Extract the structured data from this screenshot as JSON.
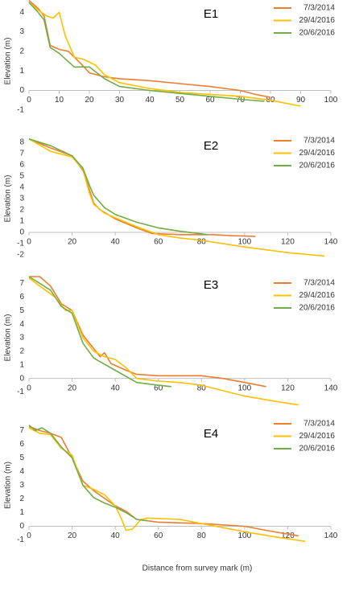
{
  "chart_data": [
    {
      "type": "line",
      "title": "E1",
      "ylabel": "Elevation (m)",
      "xlim": [
        0,
        100
      ],
      "xticks": [
        0,
        10,
        20,
        30,
        40,
        50,
        60,
        70,
        80,
        90,
        100
      ],
      "ylim": [
        -1.5,
        4.5
      ],
      "yticks": [
        -1,
        0,
        1,
        2,
        3,
        4
      ],
      "grid": false,
      "legend": "top-right",
      "series": [
        {
          "name": "7/3/2014",
          "color": "#ed7d31",
          "x": [
            0,
            3,
            5,
            7,
            10,
            13,
            17,
            20,
            25,
            30,
            40,
            50,
            60,
            70,
            75,
            80
          ],
          "values": [
            4.6,
            4.2,
            3.8,
            2.3,
            2.1,
            2.0,
            1.4,
            0.9,
            0.7,
            0.6,
            0.5,
            0.35,
            0.2,
            0,
            -0.2,
            -0.35
          ]
        },
        {
          "name": "29/4/2016",
          "color": "#ffc000",
          "x": [
            0,
            4,
            6,
            8,
            10,
            12,
            15,
            18,
            22,
            25,
            30,
            40,
            50,
            60,
            70,
            80,
            90
          ],
          "values": [
            4.5,
            4.0,
            3.8,
            3.7,
            4.0,
            2.8,
            1.7,
            1.6,
            1.3,
            0.8,
            0.4,
            0.1,
            -0.1,
            -0.2,
            -0.3,
            -0.5,
            -0.8
          ]
        },
        {
          "name": "20/6/2016",
          "color": "#70ad47",
          "x": [
            0,
            3,
            5,
            7,
            10,
            15,
            20,
            25,
            30,
            40,
            50,
            60,
            70,
            78
          ],
          "values": [
            4.5,
            4.0,
            3.6,
            2.2,
            1.9,
            1.2,
            1.2,
            0.6,
            0.2,
            0,
            -0.15,
            -0.3,
            -0.45,
            -0.55
          ]
        }
      ]
    },
    {
      "type": "line",
      "title": "E2",
      "ylabel": "Elevation (m)",
      "xlim": [
        0,
        140
      ],
      "xticks": [
        0,
        20,
        40,
        60,
        80,
        100,
        120,
        140
      ],
      "ylim": [
        -2.5,
        8.5
      ],
      "yticks": [
        -2,
        -1,
        0,
        1,
        2,
        3,
        4,
        5,
        6,
        7,
        8
      ],
      "grid": false,
      "legend": "top-right",
      "series": [
        {
          "name": "7/3/2014",
          "color": "#ed7d31",
          "x": [
            0,
            10,
            20,
            25,
            28,
            30,
            33,
            40,
            50,
            57,
            70,
            85,
            95,
            105
          ],
          "values": [
            8.3,
            7.5,
            6.8,
            5.5,
            3.8,
            2.6,
            2.0,
            1.2,
            0.4,
            -0.1,
            -0.2,
            -0.2,
            -0.3,
            -0.35
          ]
        },
        {
          "name": "29/4/2016",
          "color": "#ffc000",
          "x": [
            0,
            10,
            20,
            25,
            28,
            30,
            35,
            40,
            50,
            60,
            70,
            80,
            100,
            120,
            137
          ],
          "values": [
            8.3,
            7.2,
            6.7,
            5.6,
            3.5,
            2.5,
            1.7,
            1.3,
            0.5,
            -0.2,
            -0.5,
            -0.7,
            -1.3,
            -1.8,
            -2.1
          ]
        },
        {
          "name": "20/6/2016",
          "color": "#70ad47",
          "x": [
            0,
            10,
            20,
            25,
            28,
            30,
            35,
            40,
            50,
            60,
            70,
            83
          ],
          "values": [
            8.3,
            7.7,
            6.8,
            5.7,
            4.2,
            3.3,
            2.2,
            1.6,
            0.9,
            0.4,
            0.1,
            -0.2
          ]
        }
      ]
    },
    {
      "type": "line",
      "title": "E3",
      "ylabel": "Elevation (m)",
      "xlim": [
        0,
        140
      ],
      "xticks": [
        0,
        20,
        40,
        60,
        80,
        100,
        120,
        140
      ],
      "ylim": [
        -1.5,
        7.5
      ],
      "yticks": [
        -1,
        0,
        1,
        2,
        3,
        4,
        5,
        6,
        7
      ],
      "grid": false,
      "legend": "top-right",
      "series": [
        {
          "name": "7/3/2014",
          "color": "#ed7d31",
          "x": [
            0,
            5,
            10,
            15,
            20,
            25,
            30,
            33,
            35,
            38,
            45,
            50,
            60,
            80,
            90,
            100,
            110
          ],
          "values": [
            7.5,
            7.5,
            6.8,
            5.5,
            5.0,
            3.2,
            2.2,
            1.6,
            1.9,
            1.1,
            0.6,
            0.3,
            0.2,
            0.2,
            0,
            -0.3,
            -0.6
          ]
        },
        {
          "name": "29/4/2016",
          "color": "#ffc000",
          "x": [
            0,
            5,
            12,
            17,
            20,
            25,
            30,
            35,
            40,
            45,
            50,
            60,
            70,
            80,
            100,
            115,
            125
          ],
          "values": [
            7.4,
            6.8,
            6.0,
            5.0,
            5.0,
            3.0,
            2.0,
            1.6,
            1.4,
            0.8,
            0,
            -0.2,
            -0.3,
            -0.5,
            -1.3,
            -1.7,
            -1.95
          ]
        },
        {
          "name": "20/6/2016",
          "color": "#70ad47",
          "x": [
            0,
            5,
            10,
            15,
            20,
            25,
            30,
            40,
            50,
            60,
            66
          ],
          "values": [
            7.5,
            7.0,
            6.5,
            5.3,
            4.8,
            2.6,
            1.5,
            0.6,
            -0.3,
            -0.5,
            -0.6
          ]
        }
      ]
    },
    {
      "type": "line",
      "title": "E4",
      "ylabel": "Elevation (m)",
      "xlabel": "Distance from survey mark (m)",
      "xlim": [
        0,
        140
      ],
      "xticks": [
        0,
        20,
        40,
        60,
        80,
        100,
        120,
        140
      ],
      "ylim": [
        -1.5,
        7.5
      ],
      "yticks": [
        -1,
        0,
        1,
        2,
        3,
        4,
        5,
        6,
        7
      ],
      "grid": false,
      "legend": "top-right",
      "series": [
        {
          "name": "7/3/2014",
          "color": "#ed7d31",
          "x": [
            0,
            5,
            10,
            15,
            20,
            25,
            30,
            40,
            45,
            50,
            60,
            80,
            100,
            110,
            125
          ],
          "values": [
            7.3,
            7.0,
            6.8,
            6.5,
            5.0,
            3.3,
            2.6,
            1.5,
            1.1,
            0.5,
            0.3,
            0.2,
            0,
            -0.3,
            -0.7
          ]
        },
        {
          "name": "29/4/2016",
          "color": "#ffc000",
          "x": [
            0,
            5,
            10,
            15,
            20,
            25,
            30,
            35,
            40,
            43,
            45,
            48,
            52,
            55,
            70,
            80,
            100,
            115,
            128
          ],
          "values": [
            7.2,
            6.8,
            6.7,
            5.7,
            5.2,
            3.0,
            2.7,
            2.3,
            1.5,
            0.5,
            -0.3,
            -0.2,
            0.5,
            0.6,
            0.5,
            0.2,
            -0.4,
            -0.8,
            -1.1
          ]
        },
        {
          "name": "20/6/2016",
          "color": "#70ad47",
          "x": [
            0,
            3,
            6,
            10,
            15,
            20,
            25,
            30,
            35,
            40,
            45,
            50,
            55
          ],
          "values": [
            7.4,
            7.0,
            7.2,
            6.8,
            5.8,
            5.0,
            3.0,
            2.1,
            1.7,
            1.4,
            1.0,
            0.5,
            0.4
          ]
        }
      ]
    }
  ]
}
